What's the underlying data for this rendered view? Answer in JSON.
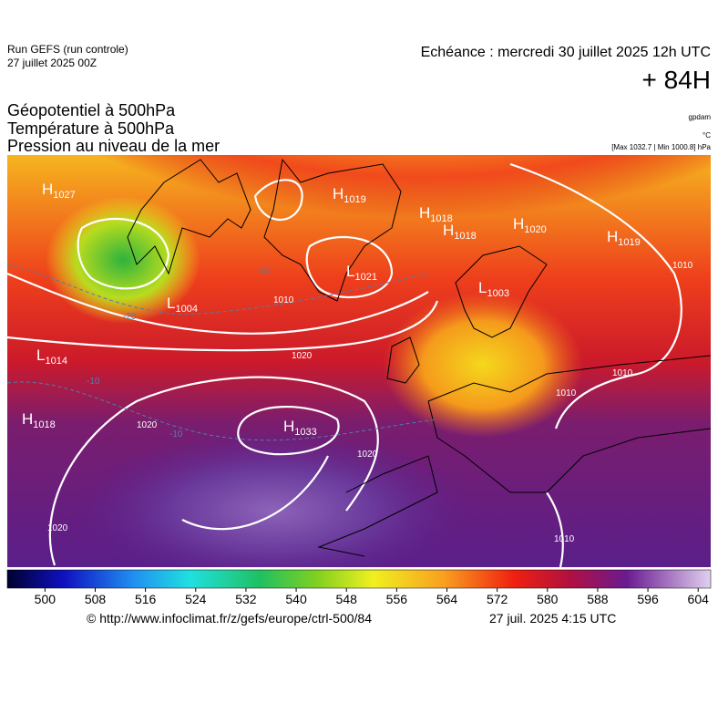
{
  "header": {
    "run": "Run GEFS (run controle)",
    "date": "27 juillet 2025 00Z",
    "echeance": "Echéance : mercredi 30 juillet 2025 12h UTC",
    "lead": "+ 84H",
    "fields": [
      "Géopotentiel à 500hPa",
      "Température à 500hPa",
      "Pression au niveau de la mer"
    ],
    "units": [
      "gpdam",
      "°C",
      "[Max 1032.7 | Min 1000.8] hPa"
    ]
  },
  "map": {
    "centers": [
      {
        "type": "H",
        "pressure": "1027"
      },
      {
        "type": "L",
        "pressure": "1004"
      },
      {
        "type": "H",
        "pressure": "1019"
      },
      {
        "type": "H",
        "pressure": "1018"
      },
      {
        "type": "H",
        "pressure": "1018"
      },
      {
        "type": "H",
        "pressure": "1020"
      },
      {
        "type": "H",
        "pressure": "1019"
      },
      {
        "type": "L",
        "pressure": "1021"
      },
      {
        "type": "L",
        "pressure": "1003"
      },
      {
        "type": "L",
        "pressure": "1014"
      },
      {
        "type": "H",
        "pressure": "1018"
      },
      {
        "type": "H",
        "pressure": "1033"
      }
    ],
    "isobar_labels": [
      "1010",
      "1020",
      "1020",
      "1020",
      "1020",
      "1010",
      "1010",
      "1010",
      "1010"
    ],
    "temperature_labels": [
      "-20",
      "-20",
      "-10",
      "-10"
    ]
  },
  "colorbar": {
    "lim": [
      494,
      606
    ],
    "ticks": [
      500,
      508,
      516,
      524,
      532,
      540,
      548,
      556,
      564,
      572,
      580,
      588,
      596,
      604
    ]
  },
  "footer": {
    "source": "© http://www.infoclimat.fr/z/gefs/europe/ctrl-500/84",
    "generated": "27 juil. 2025  4:15 UTC"
  }
}
